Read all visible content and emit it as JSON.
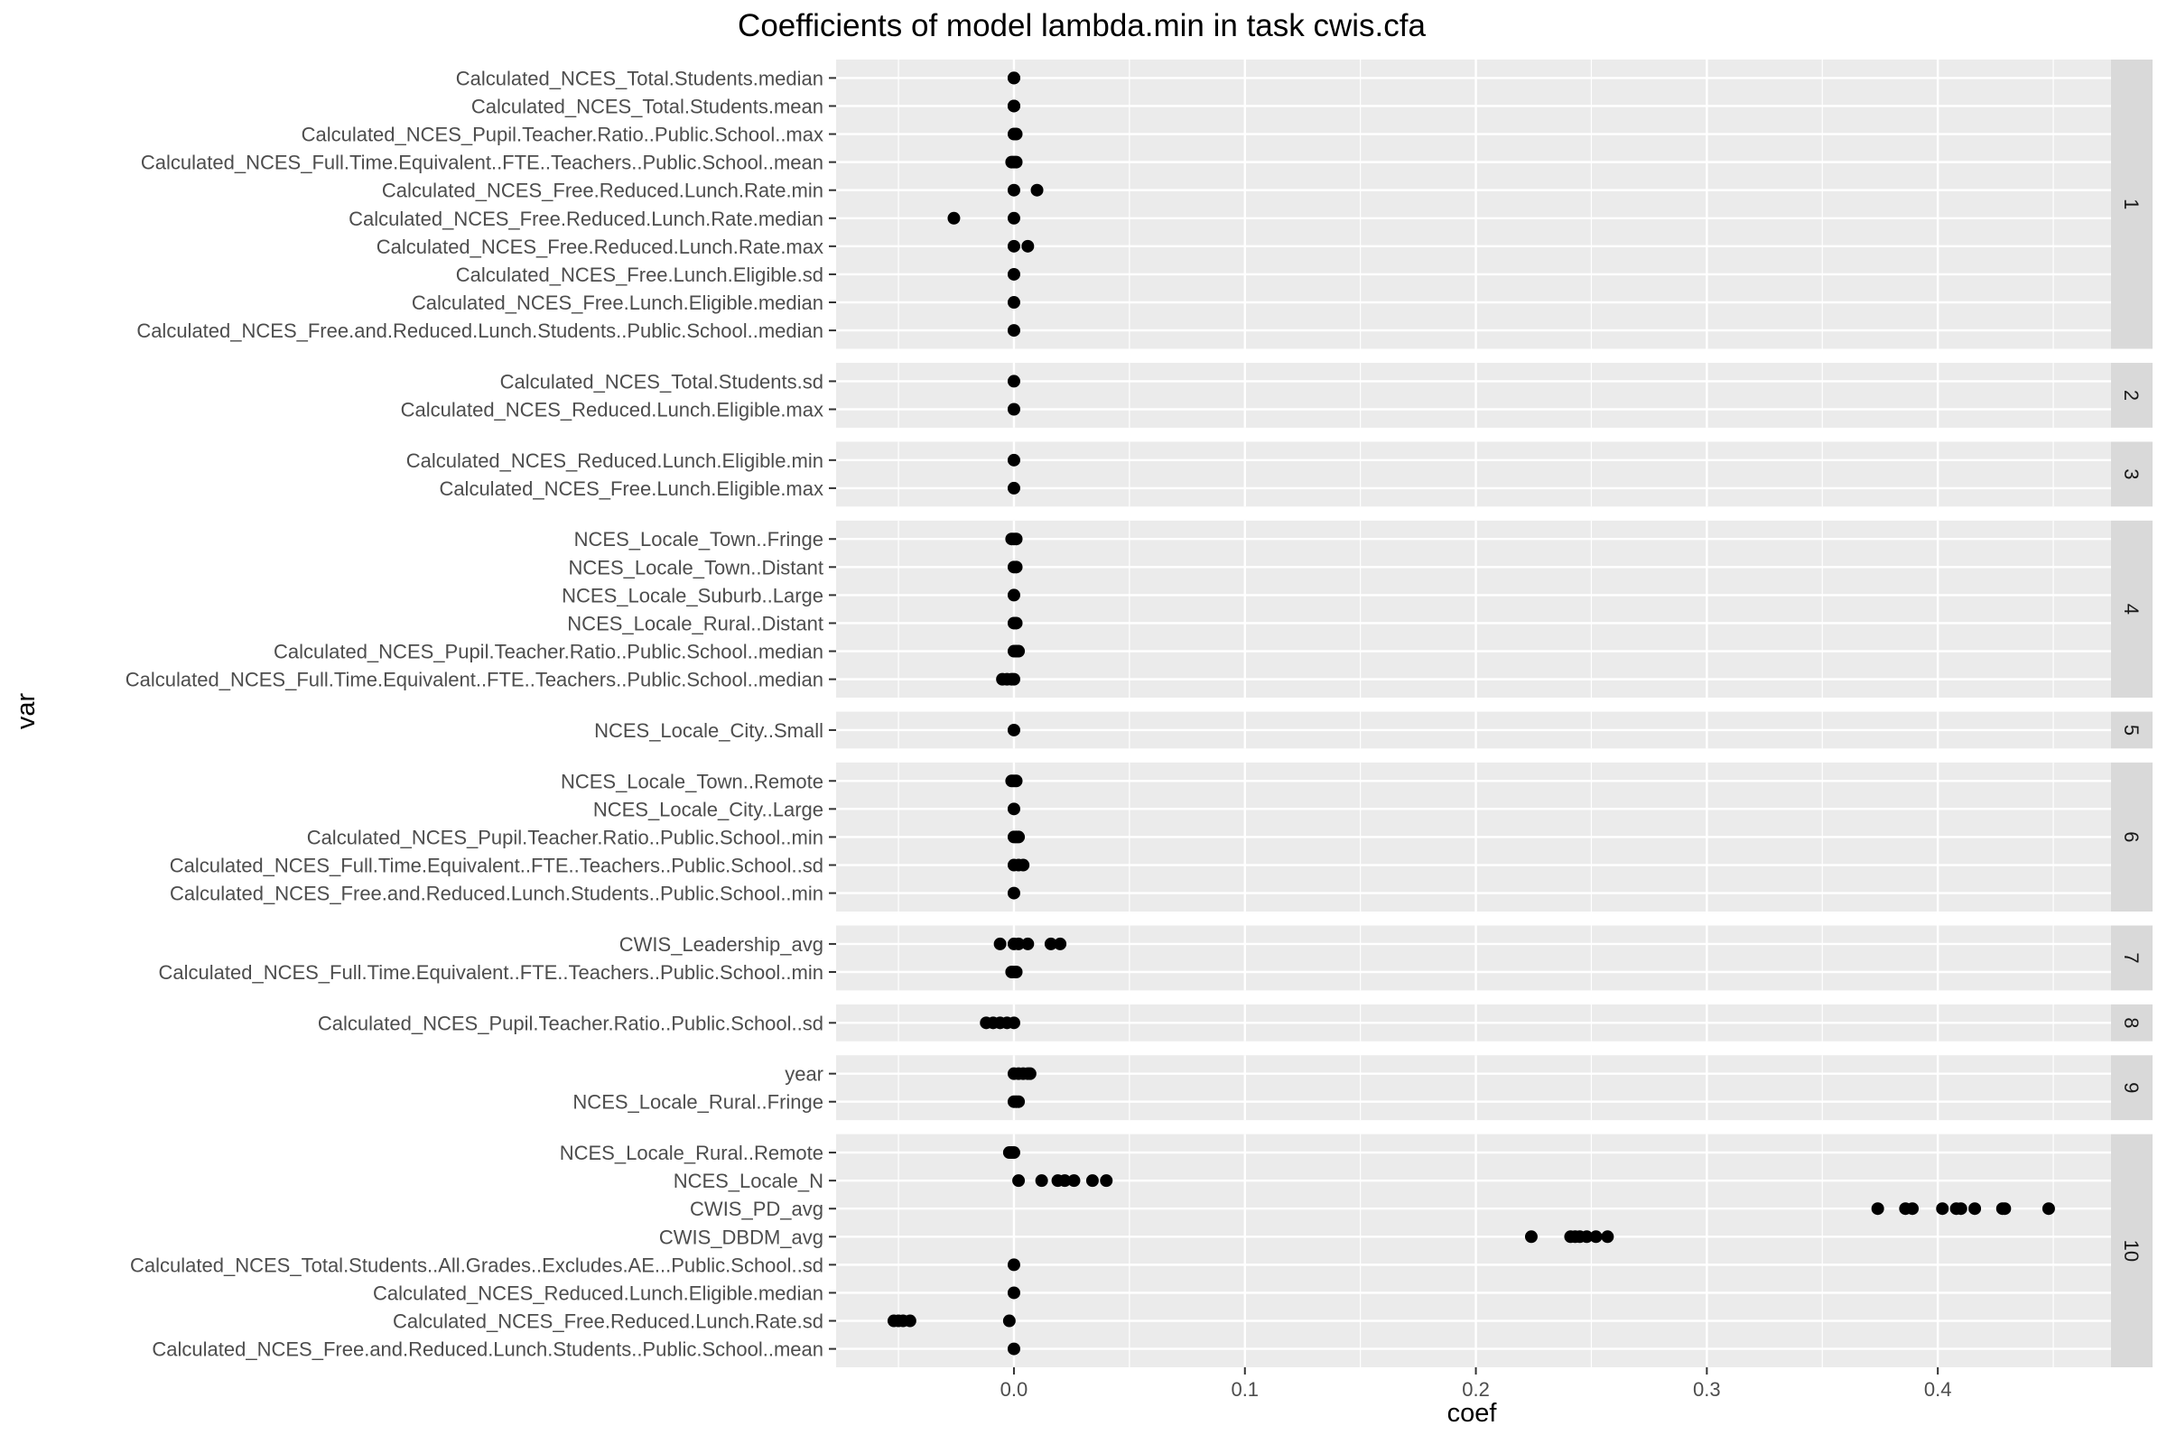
{
  "chart_data": {
    "type": "scatter",
    "title": "Coefficients of model  lambda.min  in task  cwis.cfa",
    "xlabel": "coef",
    "ylabel": "var",
    "xlim": [
      -0.077,
      0.475
    ],
    "x_ticks": [
      0.0,
      0.1,
      0.2,
      0.3,
      0.4
    ],
    "x_tick_labels": [
      "0.0",
      "0.1",
      "0.2",
      "0.3",
      "0.4"
    ],
    "grid": true,
    "facet_layout": "rows",
    "colors": {
      "point": "#000000",
      "panel_bg": "#ebebeb",
      "strip_bg": "#d9d9d9",
      "grid": "#ffffff"
    },
    "panels": [
      {
        "label": "1",
        "vars": [
          {
            "name": "Calculated_NCES_Total.Students.median",
            "values": [
              0.0,
              0.0
            ]
          },
          {
            "name": "Calculated_NCES_Total.Students.mean",
            "values": [
              0.0,
              0.0
            ]
          },
          {
            "name": "Calculated_NCES_Pupil.Teacher.Ratio..Public.School..max",
            "values": [
              0.0,
              0.001
            ]
          },
          {
            "name": "Calculated_NCES_Full.Time.Equivalent..FTE..Teachers..Public.School..mean",
            "values": [
              -0.001,
              0.0,
              0.001
            ]
          },
          {
            "name": "Calculated_NCES_Free.Reduced.Lunch.Rate.min",
            "values": [
              0.0,
              0.01
            ]
          },
          {
            "name": "Calculated_NCES_Free.Reduced.Lunch.Rate.median",
            "values": [
              -0.026,
              0.0
            ]
          },
          {
            "name": "Calculated_NCES_Free.Reduced.Lunch.Rate.max",
            "values": [
              0.0,
              0.006
            ]
          },
          {
            "name": "Calculated_NCES_Free.Lunch.Eligible.sd",
            "values": [
              0.0
            ]
          },
          {
            "name": "Calculated_NCES_Free.Lunch.Eligible.median",
            "values": [
              0.0
            ]
          },
          {
            "name": "Calculated_NCES_Free.and.Reduced.Lunch.Students..Public.School..median",
            "values": [
              0.0
            ]
          }
        ]
      },
      {
        "label": "2",
        "vars": [
          {
            "name": "Calculated_NCES_Total.Students.sd",
            "values": [
              0.0
            ]
          },
          {
            "name": "Calculated_NCES_Reduced.Lunch.Eligible.max",
            "values": [
              0.0
            ]
          }
        ]
      },
      {
        "label": "3",
        "vars": [
          {
            "name": "Calculated_NCES_Reduced.Lunch.Eligible.min",
            "values": [
              0.0
            ]
          },
          {
            "name": "Calculated_NCES_Free.Lunch.Eligible.max",
            "values": [
              0.0
            ]
          }
        ]
      },
      {
        "label": "4",
        "vars": [
          {
            "name": "NCES_Locale_Town..Fringe",
            "values": [
              -0.001,
              0.0,
              0.001
            ]
          },
          {
            "name": "NCES_Locale_Town..Distant",
            "values": [
              0.0,
              0.001
            ]
          },
          {
            "name": "NCES_Locale_Suburb..Large",
            "values": [
              0.0
            ]
          },
          {
            "name": "NCES_Locale_Rural..Distant",
            "values": [
              0.0,
              0.001
            ]
          },
          {
            "name": "Calculated_NCES_Pupil.Teacher.Ratio..Public.School..median",
            "values": [
              0.0,
              0.001,
              0.002
            ]
          },
          {
            "name": "Calculated_NCES_Full.Time.Equivalent..FTE..Teachers..Public.School..median",
            "values": [
              -0.005,
              -0.003,
              -0.001,
              0.0
            ]
          }
        ]
      },
      {
        "label": "5",
        "vars": [
          {
            "name": "NCES_Locale_City..Small",
            "values": [
              0.0
            ]
          }
        ]
      },
      {
        "label": "6",
        "vars": [
          {
            "name": "NCES_Locale_Town..Remote",
            "values": [
              -0.001,
              0.0,
              0.001
            ]
          },
          {
            "name": "NCES_Locale_City..Large",
            "values": [
              0.0
            ]
          },
          {
            "name": "Calculated_NCES_Pupil.Teacher.Ratio..Public.School..min",
            "values": [
              0.0,
              0.001,
              0.002
            ]
          },
          {
            "name": "Calculated_NCES_Full.Time.Equivalent..FTE..Teachers..Public.School..sd",
            "values": [
              0.0,
              0.002,
              0.004
            ]
          },
          {
            "name": "Calculated_NCES_Free.and.Reduced.Lunch.Students..Public.School..min",
            "values": [
              0.0
            ]
          }
        ]
      },
      {
        "label": "7",
        "vars": [
          {
            "name": "CWIS_Leadership_avg",
            "values": [
              -0.006,
              0.0,
              0.002,
              0.006,
              0.016,
              0.02
            ]
          },
          {
            "name": "Calculated_NCES_Full.Time.Equivalent..FTE..Teachers..Public.School..min",
            "values": [
              -0.001,
              0.0,
              0.001
            ]
          }
        ]
      },
      {
        "label": "8",
        "vars": [
          {
            "name": "Calculated_NCES_Pupil.Teacher.Ratio..Public.School..sd",
            "values": [
              -0.012,
              -0.009,
              -0.006,
              -0.003,
              0.0
            ]
          }
        ]
      },
      {
        "label": "9",
        "vars": [
          {
            "name": "year",
            "values": [
              0.0,
              0.002,
              0.004,
              0.006,
              0.007
            ]
          },
          {
            "name": "NCES_Locale_Rural..Fringe",
            "values": [
              0.0,
              0.001,
              0.002
            ]
          }
        ]
      },
      {
        "label": "10",
        "vars": [
          {
            "name": "NCES_Locale_Rural..Remote",
            "values": [
              -0.002,
              -0.001,
              0.0
            ]
          },
          {
            "name": "NCES_Locale_N",
            "values": [
              0.002,
              0.012,
              0.019,
              0.022,
              0.026,
              0.034,
              0.04
            ]
          },
          {
            "name": "CWIS_PD_avg",
            "values": [
              0.374,
              0.386,
              0.389,
              0.402,
              0.408,
              0.41,
              0.416,
              0.428,
              0.429,
              0.448
            ]
          },
          {
            "name": "CWIS_DBDM_avg",
            "values": [
              0.224,
              0.241,
              0.243,
              0.245,
              0.248,
              0.252,
              0.257
            ]
          },
          {
            "name": "Calculated_NCES_Total.Students..All.Grades..Excludes.AE...Public.School..sd",
            "values": [
              0.0
            ]
          },
          {
            "name": "Calculated_NCES_Reduced.Lunch.Eligible.median",
            "values": [
              0.0
            ]
          },
          {
            "name": "Calculated_NCES_Free.Reduced.Lunch.Rate.sd",
            "values": [
              -0.052,
              -0.05,
              -0.048,
              -0.045,
              -0.002
            ]
          },
          {
            "name": "Calculated_NCES_Free.and.Reduced.Lunch.Students..Public.School..mean",
            "values": [
              0.0
            ]
          }
        ]
      }
    ]
  }
}
